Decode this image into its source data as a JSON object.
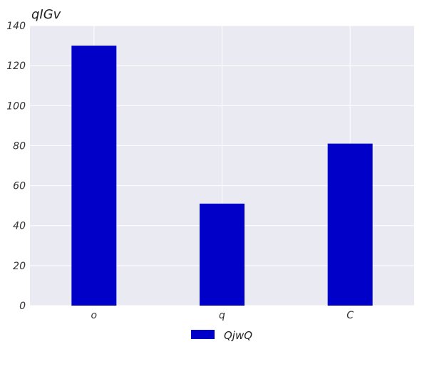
{
  "chart_data": {
    "type": "bar",
    "title": "qIGv",
    "xlabel": "",
    "ylabel": "",
    "categories": [
      "o",
      "q",
      "C"
    ],
    "series": [
      {
        "name": "QjwQ",
        "values": [
          130,
          51,
          81
        ],
        "color": "#0000c8"
      }
    ],
    "ylim": [
      0,
      140
    ],
    "yticks": [
      0,
      20,
      40,
      60,
      80,
      100,
      120,
      140
    ],
    "grid": true,
    "legend_position": "bottom-center",
    "background_color": "#eaeaf2",
    "grid_color": "#ffffff"
  }
}
